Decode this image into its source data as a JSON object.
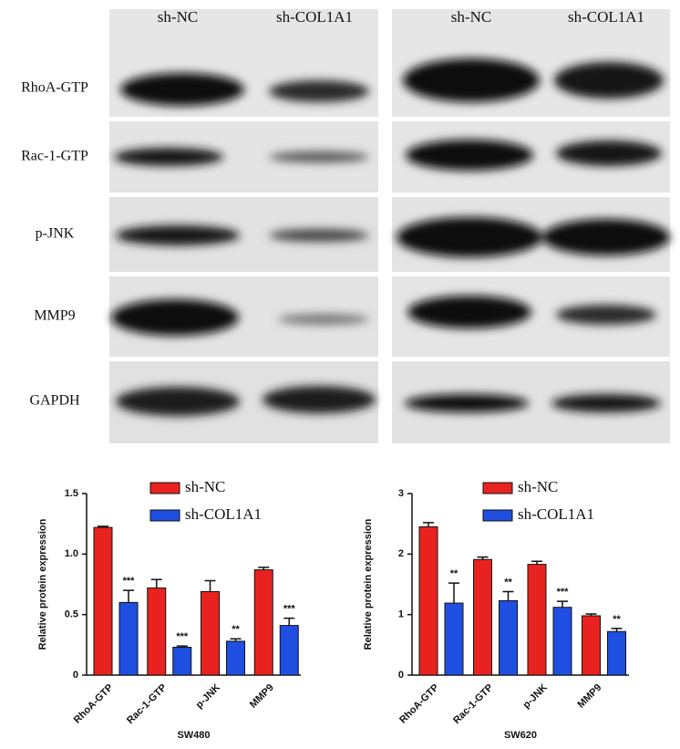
{
  "blot": {
    "columns": [
      "sh-NC",
      "sh-COL1A1",
      "sh-NC",
      "sh-COL1A1"
    ],
    "rows": [
      "RhoA-GTP",
      "Rac-1-GTP",
      "p-JNK",
      "MMP9",
      "GAPDH"
    ]
  },
  "chart_data": [
    {
      "type": "bar",
      "y_label": "Relative protein expression",
      "x_label": "SW480",
      "categories": [
        "RhoA-GTP",
        "Rac-1-GTP",
        "p-JNK",
        "MMP9"
      ],
      "ylim": [
        0,
        1.5
      ],
      "yticks": [
        0,
        0.5,
        {
          "value": 1,
          "label": "1.0"
        },
        1.5
      ],
      "series": [
        {
          "name": "sh-NC",
          "color": "#e8231f",
          "values": [
            1.22,
            0.72,
            0.69,
            0.87
          ],
          "errors": [
            0.01,
            0.07,
            0.09,
            0.02
          ]
        },
        {
          "name": "sh-COL1A1",
          "color": "#1f4fe0",
          "values": [
            0.6,
            0.23,
            0.28,
            0.41
          ],
          "errors": [
            0.1,
            0.01,
            0.02,
            0.06
          ],
          "significance": [
            "***",
            "***",
            "**",
            "***"
          ]
        }
      ]
    },
    {
      "type": "bar",
      "y_label": "Relative protein expression",
      "x_label": "SW620",
      "categories": [
        "RhoA-GTP",
        "Rac-1-GTP",
        "p-JNK",
        "MMP9"
      ],
      "ylim": [
        0,
        3
      ],
      "yticks": [
        0,
        1,
        2,
        3
      ],
      "series": [
        {
          "name": "sh-NC",
          "color": "#e8231f",
          "values": [
            2.45,
            1.91,
            1.83,
            0.98
          ],
          "errors": [
            0.07,
            0.04,
            0.05,
            0.03
          ]
        },
        {
          "name": "sh-COL1A1",
          "color": "#1f4fe0",
          "values": [
            1.19,
            1.23,
            1.12,
            0.72
          ],
          "errors": [
            0.33,
            0.15,
            0.1,
            0.05
          ],
          "significance": [
            "**",
            "**",
            "***",
            "**"
          ]
        }
      ]
    }
  ]
}
